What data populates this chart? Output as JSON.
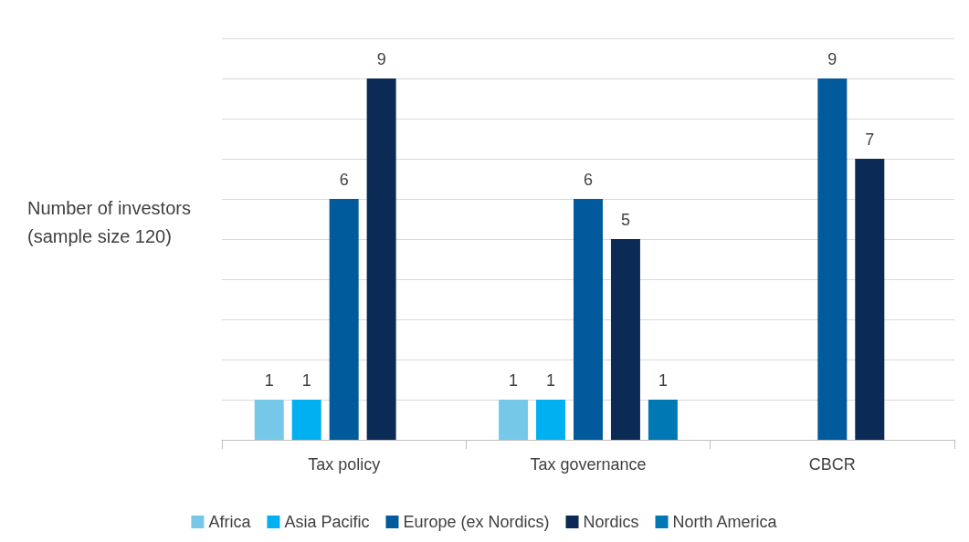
{
  "chart_data": {
    "type": "bar",
    "ylabel": "Number of investors (sample size 120)",
    "categories": [
      "Tax policy",
      "Tax governance",
      "CBCR"
    ],
    "series": [
      {
        "name": "Africa",
        "color": "#75c8e8",
        "values": [
          1,
          1,
          null
        ]
      },
      {
        "name": "Asia Pacific",
        "color": "#00b0f0",
        "values": [
          1,
          1,
          null
        ]
      },
      {
        "name": "Europe (ex Nordics)",
        "color": "#005a9c",
        "values": [
          6,
          6,
          9
        ]
      },
      {
        "name": "Nordics",
        "color": "#0b2a56",
        "values": [
          9,
          5,
          7
        ]
      },
      {
        "name": "North America",
        "color": "#0078b4",
        "values": [
          null,
          1,
          null
        ]
      }
    ],
    "ylim": [
      0,
      10
    ],
    "yticks": [
      {
        "value": 0,
        "label": null
      },
      {
        "value": 1,
        "label": null
      },
      {
        "value": 2,
        "label": null
      },
      {
        "value": 3,
        "label": null
      },
      {
        "value": 4,
        "label": null
      },
      {
        "value": 5,
        "label": null
      },
      {
        "value": 6,
        "label": null
      },
      {
        "value": 7,
        "label": null
      },
      {
        "value": 8,
        "label": null
      },
      {
        "value": 9,
        "label": null
      },
      {
        "value": 10,
        "label": null
      }
    ],
    "tick_labels": "x",
    "grid": "y",
    "legend": "bottom",
    "data_labels": true
  }
}
